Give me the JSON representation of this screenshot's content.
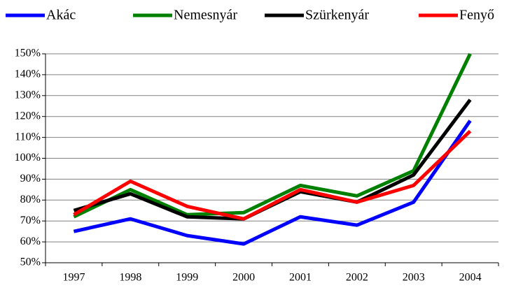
{
  "chart_data": {
    "type": "line",
    "categories": [
      "1997",
      "1998",
      "1999",
      "2000",
      "2001",
      "2002",
      "2003",
      "2004"
    ],
    "series": [
      {
        "name": "Akác",
        "color": "#0000ff",
        "values": [
          65,
          71,
          63,
          59,
          72,
          68,
          79,
          118
        ]
      },
      {
        "name": "Nemesnyár",
        "color": "#008000",
        "values": [
          72,
          85,
          73,
          74,
          87,
          82,
          94,
          150
        ]
      },
      {
        "name": "Szürkenyár",
        "color": "#000000",
        "values": [
          75,
          83,
          72,
          71,
          84,
          79,
          92,
          128
        ]
      },
      {
        "name": "Fenyő",
        "color": "#ff0000",
        "values": [
          73,
          89,
          77,
          71,
          85,
          79,
          87,
          113
        ]
      }
    ],
    "ylim": [
      50,
      150
    ],
    "yticks": [
      {
        "value": 50,
        "label": "50%"
      },
      {
        "value": 60,
        "label": "60%"
      },
      {
        "value": 70,
        "label": "70%"
      },
      {
        "value": 80,
        "label": "80%"
      },
      {
        "value": 90,
        "label": "90%"
      },
      {
        "value": 100,
        "label": "100%"
      },
      {
        "value": 110,
        "label": "110%"
      },
      {
        "value": 120,
        "label": "120%"
      },
      {
        "value": 130,
        "label": "130%"
      },
      {
        "value": 140,
        "label": "140%"
      },
      {
        "value": 150,
        "label": "150%"
      }
    ],
    "grid": true,
    "legend": "top"
  }
}
